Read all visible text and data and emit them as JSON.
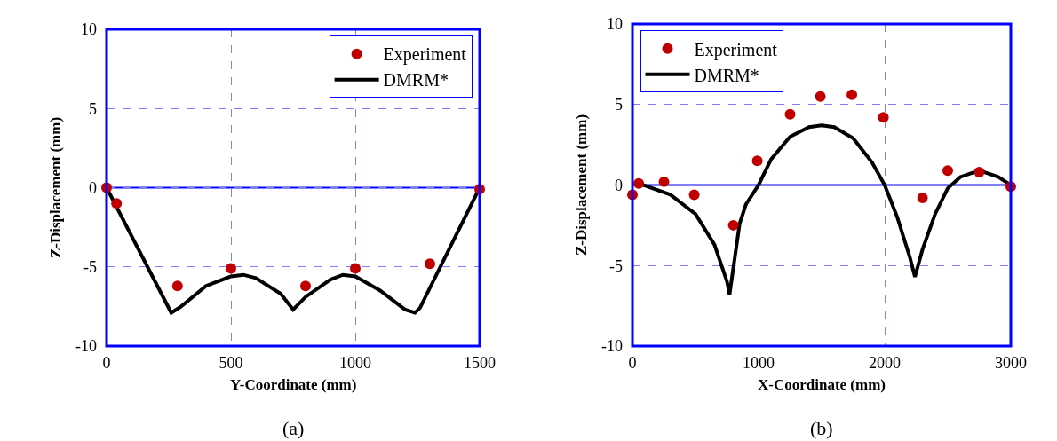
{
  "chart_data": [
    {
      "type": "line",
      "xlabel": "Y-Coordinate (mm)",
      "ylabel": "Z-Displacement (mm)",
      "xlim": [
        0,
        1500
      ],
      "xticks": [
        0,
        500,
        1000,
        1500
      ],
      "ylim": [
        -10,
        10
      ],
      "yticks": [
        -10,
        -5,
        0,
        5,
        10
      ],
      "grid": true,
      "legend": "top right",
      "annotations": [
        "(a)"
      ],
      "ref_lines": [
        {
          "axis": "y",
          "value": 0,
          "color": "#0000ff"
        }
      ],
      "series": [
        {
          "name": "Experiment",
          "type": "scatter",
          "marker": "circle",
          "color": "#c00000",
          "x": [
            0,
            40,
            285,
            500,
            800,
            1000,
            1300,
            1500
          ],
          "values": [
            0,
            -1,
            -6.2,
            -5.1,
            -6.2,
            -5.1,
            -4.8,
            -0.1
          ]
        },
        {
          "name": "DMRM*",
          "line_style": "solid",
          "color": "#000000",
          "x": [
            0,
            260,
            300,
            400,
            500,
            550,
            600,
            700,
            750,
            800,
            900,
            950,
            1000,
            1100,
            1200,
            1240,
            1260,
            1500
          ],
          "values": [
            0,
            -7.9,
            -7.5,
            -6.2,
            -5.6,
            -5.5,
            -5.7,
            -6.7,
            -7.7,
            -6.9,
            -5.8,
            -5.5,
            -5.6,
            -6.5,
            -7.7,
            -7.9,
            -7.6,
            0
          ]
        }
      ]
    },
    {
      "type": "line",
      "xlabel": "X-Coordinate (mm)",
      "ylabel": "Z-Displacement (mm)",
      "xlim": [
        0,
        3000
      ],
      "xticks": [
        0,
        1000,
        2000,
        3000
      ],
      "ylim": [
        -10,
        10
      ],
      "yticks": [
        -10,
        -5,
        0,
        5,
        10
      ],
      "grid": true,
      "legend": "top left",
      "annotations": [
        "(b)"
      ],
      "ref_lines": [
        {
          "axis": "y",
          "value": 0,
          "color": "#0000ff"
        }
      ],
      "series": [
        {
          "name": "Experiment",
          "type": "scatter",
          "marker": "circle",
          "color": "#c00000",
          "x": [
            0,
            50,
            250,
            490,
            800,
            990,
            1250,
            1490,
            1740,
            1990,
            2300,
            2500,
            2750,
            3000
          ],
          "values": [
            -0.6,
            0.1,
            0.2,
            -0.6,
            -2.5,
            1.5,
            4.4,
            5.5,
            5.6,
            4.2,
            -0.8,
            0.9,
            0.8,
            -0.1
          ]
        },
        {
          "name": "DMRM*",
          "line_style": "solid",
          "color": "#000000",
          "x": [
            50,
            300,
            500,
            650,
            750,
            770,
            850,
            900,
            1000,
            1100,
            1250,
            1400,
            1500,
            1600,
            1750,
            1900,
            2000,
            2100,
            2200,
            2240,
            2300,
            2400,
            2500,
            2600,
            2750,
            2900,
            3000
          ],
          "values": [
            0.1,
            -0.6,
            -1.8,
            -3.7,
            -6,
            -6.8,
            -2.4,
            -1.2,
            0,
            1.6,
            3,
            3.6,
            3.7,
            3.6,
            2.9,
            1.4,
            0,
            -2,
            -4.5,
            -5.7,
            -4,
            -1.8,
            -0.2,
            0.5,
            0.9,
            0.5,
            0
          ]
        }
      ]
    }
  ]
}
